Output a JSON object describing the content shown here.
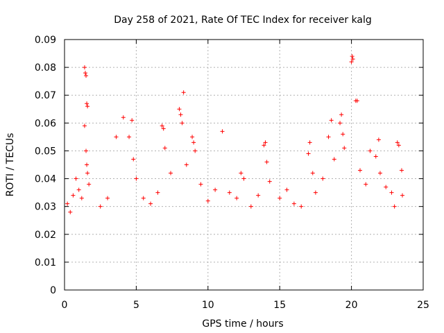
{
  "chart_data": {
    "type": "scatter",
    "title": "Day 258 of 2021, Rate Of TEC Index for receiver kalg",
    "xlabel": "GPS time / hours",
    "ylabel": "ROTI / TECUs",
    "xlim": [
      0,
      25
    ],
    "ylim": [
      0,
      0.09
    ],
    "x_ticks": [
      "0",
      "5",
      "10",
      "15",
      "20",
      "25"
    ],
    "y_ticks": [
      "0",
      "0.01",
      "0.02",
      "0.03",
      "0.04",
      "0.05",
      "0.06",
      "0.07",
      "0.08",
      "0.09"
    ],
    "grid": true,
    "marker": "+",
    "color": "#ff0000",
    "series": [
      {
        "points": [
          [
            0.2,
            0.031
          ],
          [
            0.4,
            0.028
          ],
          [
            0.6,
            0.034
          ],
          [
            0.8,
            0.04
          ],
          [
            1.0,
            0.036
          ],
          [
            1.2,
            0.033
          ],
          [
            1.4,
            0.08
          ],
          [
            1.45,
            0.078
          ],
          [
            1.5,
            0.077
          ],
          [
            1.55,
            0.067
          ],
          [
            1.6,
            0.066
          ],
          [
            1.4,
            0.059
          ],
          [
            1.5,
            0.05
          ],
          [
            1.55,
            0.045
          ],
          [
            1.6,
            0.042
          ],
          [
            1.7,
            0.038
          ],
          [
            2.5,
            0.03
          ],
          [
            3.0,
            0.033
          ],
          [
            3.6,
            0.055
          ],
          [
            4.1,
            0.062
          ],
          [
            4.5,
            0.055
          ],
          [
            4.7,
            0.061
          ],
          [
            4.8,
            0.047
          ],
          [
            5.0,
            0.04
          ],
          [
            5.5,
            0.033
          ],
          [
            6.0,
            0.031
          ],
          [
            6.5,
            0.035
          ],
          [
            6.8,
            0.059
          ],
          [
            6.9,
            0.058
          ],
          [
            7.0,
            0.051
          ],
          [
            7.4,
            0.042
          ],
          [
            8.0,
            0.065
          ],
          [
            8.1,
            0.063
          ],
          [
            8.2,
            0.06
          ],
          [
            8.3,
            0.071
          ],
          [
            8.5,
            0.045
          ],
          [
            8.9,
            0.055
          ],
          [
            9.0,
            0.053
          ],
          [
            9.1,
            0.05
          ],
          [
            9.5,
            0.038
          ],
          [
            10.0,
            0.032
          ],
          [
            10.5,
            0.036
          ],
          [
            11.0,
            0.057
          ],
          [
            11.5,
            0.035
          ],
          [
            12.0,
            0.033
          ],
          [
            12.3,
            0.042
          ],
          [
            12.5,
            0.04
          ],
          [
            13.0,
            0.03
          ],
          [
            13.5,
            0.034
          ],
          [
            13.9,
            0.052
          ],
          [
            14.0,
            0.053
          ],
          [
            14.1,
            0.046
          ],
          [
            14.3,
            0.039
          ],
          [
            15.0,
            0.033
          ],
          [
            15.5,
            0.036
          ],
          [
            16.0,
            0.031
          ],
          [
            16.5,
            0.03
          ],
          [
            17.0,
            0.049
          ],
          [
            17.1,
            0.053
          ],
          [
            17.3,
            0.042
          ],
          [
            17.5,
            0.035
          ],
          [
            18.0,
            0.04
          ],
          [
            18.4,
            0.055
          ],
          [
            18.6,
            0.061
          ],
          [
            18.8,
            0.047
          ],
          [
            19.2,
            0.06
          ],
          [
            19.3,
            0.063
          ],
          [
            19.4,
            0.056
          ],
          [
            19.5,
            0.051
          ],
          [
            20.0,
            0.082
          ],
          [
            20.05,
            0.084
          ],
          [
            20.1,
            0.083
          ],
          [
            20.3,
            0.068
          ],
          [
            20.4,
            0.068
          ],
          [
            20.6,
            0.043
          ],
          [
            21.0,
            0.038
          ],
          [
            21.3,
            0.05
          ],
          [
            21.7,
            0.048
          ],
          [
            21.9,
            0.054
          ],
          [
            22.0,
            0.042
          ],
          [
            22.4,
            0.037
          ],
          [
            22.8,
            0.035
          ],
          [
            23.0,
            0.03
          ],
          [
            23.2,
            0.053
          ],
          [
            23.3,
            0.052
          ],
          [
            23.5,
            0.043
          ],
          [
            23.55,
            0.034
          ]
        ]
      }
    ]
  }
}
